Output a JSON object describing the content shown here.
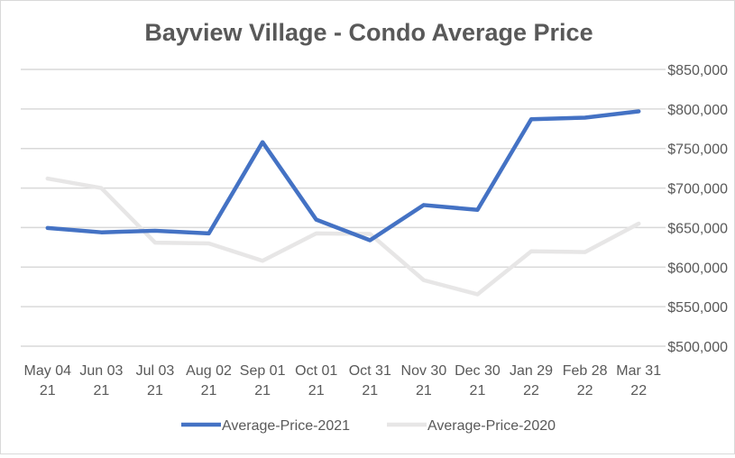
{
  "chart_data": {
    "type": "line",
    "title": "Bayview Village - Condo Average Price",
    "categories": [
      [
        "May 04",
        "21"
      ],
      [
        "Jun 03",
        "21"
      ],
      [
        "Jul 03",
        "21"
      ],
      [
        "Aug 02",
        "21"
      ],
      [
        "Sep 01",
        "21"
      ],
      [
        "Oct 01",
        "21"
      ],
      [
        "Oct 31",
        "21"
      ],
      [
        "Nov 30",
        "21"
      ],
      [
        "Dec 30",
        "21"
      ],
      [
        "Jan 29",
        "22"
      ],
      [
        "Feb 28",
        "22"
      ],
      [
        "Mar 31",
        "22"
      ]
    ],
    "yticks": [
      500000,
      550000,
      600000,
      650000,
      700000,
      750000,
      800000,
      850000
    ],
    "ytick_labels": [
      "$500,000",
      "$550,000",
      "$600,000",
      "$650,000",
      "$700,000",
      "$750,000",
      "$800,000",
      "$850,000"
    ],
    "ylim": [
      500000,
      850000
    ],
    "yaxis_position": "right",
    "grid": true,
    "legend_position": "bottom",
    "series": [
      {
        "name": "Average-Price-2021",
        "color": "#4472C4",
        "values": [
          649500,
          644000,
          646000,
          642600,
          758000,
          660000,
          634000,
          678500,
          672400,
          787000,
          789000,
          797000
        ]
      },
      {
        "name": "Average-Price-2020",
        "color": "#E7E6E6",
        "values": [
          712000,
          700000,
          631000,
          630000,
          608000,
          642600,
          642000,
          583500,
          565600,
          620000,
          619000,
          655000
        ]
      }
    ]
  }
}
